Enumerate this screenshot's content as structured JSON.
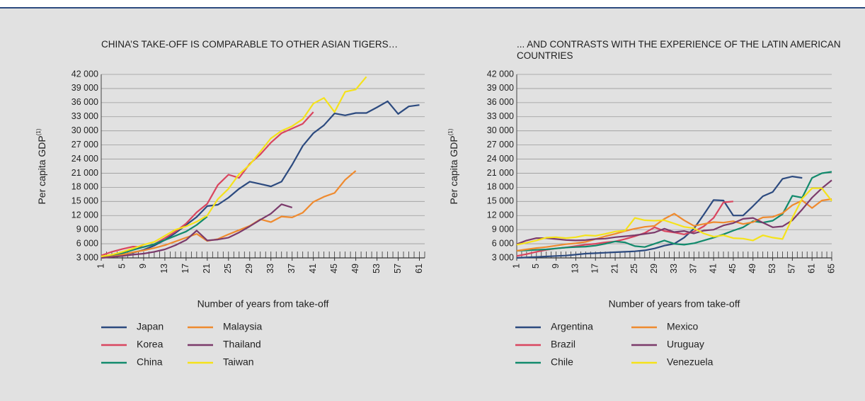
{
  "chart_data": [
    {
      "type": "line",
      "title": "CHINA’S TAKE-OFF IS COMPARABLE TO OTHER ASIAN TIGERS…",
      "x_label": "Number of years from take-off",
      "y_label": "Per capita GDP",
      "y_label_note": "(1)",
      "xlim": [
        1,
        62
      ],
      "xticks": [
        1,
        5,
        9,
        13,
        17,
        21,
        25,
        29,
        33,
        37,
        41,
        45,
        49,
        53,
        57,
        61
      ],
      "ylim": [
        3000,
        42000
      ],
      "yticks": [
        {
          "value": 3000,
          "label": "3 000"
        },
        {
          "value": 6000,
          "label": "6 000"
        },
        {
          "value": 9000,
          "label": "9 000"
        },
        {
          "value": 12000,
          "label": "12 000"
        },
        {
          "value": 15000,
          "label": "15 000"
        },
        {
          "value": 18000,
          "label": "18 000"
        },
        {
          "value": 21000,
          "label": "21 000"
        },
        {
          "value": 24000,
          "label": "24 000"
        },
        {
          "value": 27000,
          "label": "27 000"
        },
        {
          "value": 30000,
          "label": "30 000"
        },
        {
          "value": 33000,
          "label": "33 000"
        },
        {
          "value": 36000,
          "label": "36 000"
        },
        {
          "value": 39000,
          "label": "39 000"
        },
        {
          "value": 42000,
          "label": "42 000"
        }
      ],
      "grid": true,
      "x": [
        1,
        3,
        5,
        7,
        9,
        11,
        13,
        15,
        17,
        19,
        21,
        23,
        25,
        27,
        29,
        31,
        33,
        35,
        37,
        39,
        41,
        43,
        45,
        47,
        49,
        51,
        53,
        55,
        57,
        59,
        61
      ],
      "series": [
        {
          "name": "Japan",
          "color": "#2c4a7f",
          "values": [
            3000,
            3300,
            3700,
            4100,
            4700,
            5600,
            6800,
            8300,
            10000,
            11700,
            14000,
            14300,
            15800,
            17700,
            19200,
            18700,
            18200,
            19200,
            22800,
            26800,
            29500,
            31200,
            33700,
            33300,
            33800,
            33800,
            35000,
            36300,
            33600,
            35200,
            35500
          ]
        },
        {
          "name": "Korea",
          "color": "#d9455f",
          "values": [
            3500,
            4300,
            4900,
            5400,
            5300,
            5900,
            7200,
            8600,
            10300,
            12700,
            14500,
            18500,
            20700,
            20000,
            23000,
            25000,
            27500,
            29500,
            30500,
            31500,
            34000,
            null,
            null,
            null,
            null,
            null,
            null,
            null,
            null,
            null,
            null
          ]
        },
        {
          "name": "China",
          "color": "#128a6c",
          "values": [
            3000,
            3500,
            4000,
            4700,
            5300,
            5900,
            6800,
            7700,
            8600,
            10000,
            11800,
            null,
            null,
            null,
            null,
            null,
            null,
            null,
            null,
            null,
            null,
            null,
            null,
            null,
            null,
            null,
            null,
            null,
            null,
            null,
            null
          ]
        },
        {
          "name": "Malaysia",
          "color": "#ef8a2e",
          "values": [
            3000,
            3300,
            3700,
            4200,
            4600,
            5100,
            5700,
            6500,
            7300,
            8100,
            6600,
            7000,
            8000,
            8900,
            9800,
            11200,
            10600,
            11800,
            11600,
            12600,
            14900,
            16000,
            16800,
            19600,
            21500,
            null,
            null,
            null,
            null,
            null,
            null
          ]
        },
        {
          "name": "Thailand",
          "color": "#7b3a6b",
          "values": [
            3000,
            3200,
            3400,
            3700,
            3900,
            4300,
            4800,
            5700,
            6800,
            8800,
            6700,
            6900,
            7300,
            8400,
            9700,
            11100,
            12400,
            14400,
            13700,
            null,
            null,
            null,
            null,
            null,
            null,
            null,
            null,
            null,
            null,
            null,
            null
          ]
        },
        {
          "name": "Taiwan",
          "color": "#f5e21a",
          "values": [
            3300,
            3700,
            4300,
            5000,
            5800,
            6400,
            7700,
            9000,
            9700,
            10700,
            12000,
            15500,
            17700,
            20800,
            22800,
            25600,
            28400,
            30000,
            31000,
            32500,
            35800,
            37000,
            34000,
            38300,
            38800,
            41500,
            null,
            null,
            null,
            null,
            null
          ]
        }
      ]
    },
    {
      "type": "line",
      "title": "... AND CONTRASTS WITH THE EXPERIENCE OF THE LATIN AMERICAN COUNTRIES",
      "x_label": "Number of years from take-off",
      "y_label": "Per capita GDP",
      "y_label_note": "(1)",
      "xlim": [
        1,
        65
      ],
      "xticks": [
        1,
        5,
        9,
        13,
        17,
        21,
        25,
        29,
        33,
        37,
        41,
        45,
        49,
        53,
        57,
        61,
        65
      ],
      "ylim": [
        3000,
        42000
      ],
      "yticks": [
        {
          "value": 3000,
          "label": "3 000"
        },
        {
          "value": 6000,
          "label": "6 000"
        },
        {
          "value": 9000,
          "label": "9 000"
        },
        {
          "value": 12000,
          "label": "12 000"
        },
        {
          "value": 15000,
          "label": "15 000"
        },
        {
          "value": 18000,
          "label": "18 000"
        },
        {
          "value": 21000,
          "label": "21 000"
        },
        {
          "value": 24000,
          "label": "24 000"
        },
        {
          "value": 27000,
          "label": "27 000"
        },
        {
          "value": 30000,
          "label": "30 000"
        },
        {
          "value": 33000,
          "label": "33 000"
        },
        {
          "value": 36000,
          "label": "36 000"
        },
        {
          "value": 39000,
          "label": "39 000"
        },
        {
          "value": 42000,
          "label": "42 000"
        }
      ],
      "grid": true,
      "x": [
        1,
        3,
        5,
        7,
        9,
        11,
        13,
        15,
        17,
        19,
        21,
        23,
        25,
        27,
        29,
        31,
        33,
        35,
        37,
        39,
        41,
        43,
        45,
        47,
        49,
        51,
        53,
        55,
        57,
        59,
        61,
        63,
        65
      ],
      "series": [
        {
          "name": "Argentina",
          "color": "#2c4a7f",
          "values": [
            3000,
            3100,
            3200,
            3300,
            3400,
            3500,
            3700,
            3900,
            4000,
            4100,
            4200,
            4300,
            4400,
            4600,
            5000,
            5600,
            6000,
            7300,
            9200,
            12200,
            15300,
            15200,
            12000,
            12000,
            14000,
            16100,
            17000,
            19800,
            20300,
            20000,
            null,
            null,
            null
          ]
        },
        {
          "name": "Brazil",
          "color": "#d9455f",
          "values": [
            3400,
            3800,
            4300,
            4700,
            5000,
            5200,
            5500,
            5800,
            6000,
            6300,
            6500,
            7000,
            7600,
            8300,
            9500,
            8700,
            8400,
            8000,
            8600,
            9700,
            11500,
            14800,
            15000,
            null,
            null,
            null,
            null,
            null,
            null,
            null,
            null,
            null,
            null
          ]
        },
        {
          "name": "Chile",
          "color": "#128a6c",
          "values": [
            4500,
            4600,
            4700,
            4800,
            5000,
            5200,
            5300,
            5400,
            5600,
            6000,
            6500,
            6300,
            5500,
            5300,
            6000,
            6700,
            6000,
            5800,
            6100,
            6700,
            7300,
            8000,
            8800,
            9500,
            10800,
            10500,
            10900,
            12300,
            16200,
            15800,
            20000,
            21000,
            21300
          ]
        },
        {
          "name": "Mexico",
          "color": "#ef8a2e",
          "values": [
            4500,
            4800,
            5100,
            5300,
            5600,
            5900,
            6100,
            6400,
            7000,
            7600,
            8100,
            8700,
            9200,
            9600,
            9800,
            11300,
            12400,
            11000,
            9800,
            10200,
            10600,
            10500,
            10800,
            10200,
            10600,
            11600,
            11700,
            12500,
            14200,
            15200,
            13600,
            15200,
            15500
          ]
        },
        {
          "name": "Uruguay",
          "color": "#7b3a6b",
          "values": [
            5900,
            6700,
            7200,
            7200,
            7000,
            6800,
            6700,
            6800,
            7000,
            7100,
            7400,
            7600,
            7800,
            8100,
            8400,
            9200,
            8500,
            8700,
            8200,
            8800,
            9000,
            9900,
            10400,
            11300,
            11500,
            10500,
            9500,
            9700,
            11000,
            13300,
            15800,
            17800,
            19500
          ]
        },
        {
          "name": "Venezuela",
          "color": "#f5e21a",
          "values": [
            5800,
            6200,
            6700,
            7300,
            7400,
            7200,
            7400,
            7800,
            7700,
            8100,
            8600,
            8800,
            11500,
            11000,
            10900,
            11000,
            10300,
            9600,
            9300,
            8200,
            7500,
            7800,
            7200,
            7100,
            6700,
            7800,
            7300,
            7000,
            11500,
            15600,
            17800,
            17800,
            15100
          ]
        }
      ]
    }
  ]
}
